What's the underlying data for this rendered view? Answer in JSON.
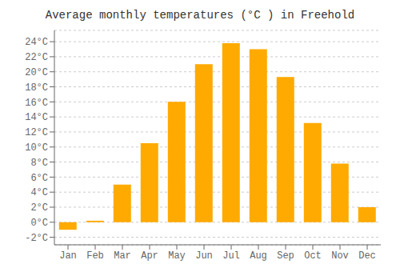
{
  "chart_data": {
    "type": "bar",
    "title": "Average monthly temperatures (°C ) in Freehold",
    "categories": [
      "Jan",
      "Feb",
      "Mar",
      "Apr",
      "May",
      "Jun",
      "Jul",
      "Aug",
      "Sep",
      "Oct",
      "Nov",
      "Dec"
    ],
    "values": [
      -1.0,
      0.2,
      5.0,
      10.5,
      16.0,
      21.0,
      23.8,
      23.0,
      19.3,
      13.2,
      7.8,
      2.0
    ],
    "color": "#FFAA00",
    "ylim": [
      -3,
      25.5
    ],
    "yticks": [
      {
        "value": -2,
        "label": "-2°C"
      },
      {
        "value": 0,
        "label": "0°C"
      },
      {
        "value": 2,
        "label": "2°C"
      },
      {
        "value": 4,
        "label": "4°C"
      },
      {
        "value": 6,
        "label": "6°C"
      },
      {
        "value": 8,
        "label": "8°C"
      },
      {
        "value": 10,
        "label": "10°C"
      },
      {
        "value": 12,
        "label": "12°C"
      },
      {
        "value": 14,
        "label": "14°C"
      },
      {
        "value": 16,
        "label": "16°C"
      },
      {
        "value": 18,
        "label": "18°C"
      },
      {
        "value": 20,
        "label": "20°C"
      },
      {
        "value": 22,
        "label": "22°C"
      },
      {
        "value": 24,
        "label": "24°C"
      }
    ],
    "grid": true
  }
}
